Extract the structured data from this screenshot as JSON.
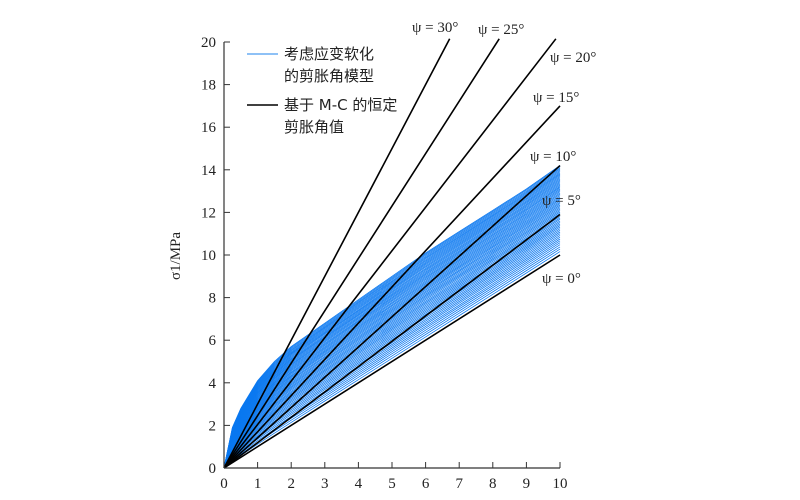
{
  "chart_data": {
    "type": "line",
    "title": "",
    "xlabel": "",
    "ylabel": "σ1/MPa",
    "xlim": [
      0,
      10
    ],
    "ylim": [
      0,
      20
    ],
    "x_ticks": [
      "0",
      "1",
      "2",
      "3",
      "4",
      "5",
      "6",
      "7",
      "8",
      "9",
      "10"
    ],
    "y_ticks": [
      "0",
      "2",
      "4",
      "6",
      "8",
      "10",
      "12",
      "14",
      "16",
      "18",
      "20"
    ],
    "grid": false,
    "legend_placement": "top-left",
    "legend": [
      {
        "label_lines": [
          "考虑应变软化",
          "的剪胀角模型"
        ],
        "color": "#1e7fe8"
      },
      {
        "label_lines": [
          "基于 M-C 的恒定",
          "剪胀角值"
        ],
        "color": "#000000"
      }
    ],
    "strain_softening_band": {
      "color": "#0a78f0",
      "x": [
        0,
        0.25,
        0.5,
        1,
        1.5,
        2,
        3,
        4,
        5,
        6,
        7,
        8,
        9,
        10
      ],
      "upper": [
        0,
        1.9,
        2.8,
        4.1,
        5.0,
        5.7,
        6.8,
        7.9,
        9.0,
        10.1,
        11.1,
        12.1,
        13.1,
        14.2
      ],
      "lower": [
        0,
        0.25,
        0.5,
        1,
        1.5,
        2,
        3,
        4,
        5,
        6,
        7,
        8,
        9,
        10
      ]
    },
    "constant_dilation_lines": [
      {
        "label": "ψ = 0°",
        "slope": 1.0
      },
      {
        "label": "ψ = 5°",
        "slope": 1.19
      },
      {
        "label": "ψ = 10°",
        "slope": 1.42
      },
      {
        "label": "ψ = 15°",
        "slope": 1.7
      },
      {
        "label": "ψ = 20°",
        "slope": 2.04
      },
      {
        "label": "ψ = 25°",
        "slope": 2.46
      },
      {
        "label": "ψ = 30°",
        "slope": 3.0
      }
    ]
  }
}
